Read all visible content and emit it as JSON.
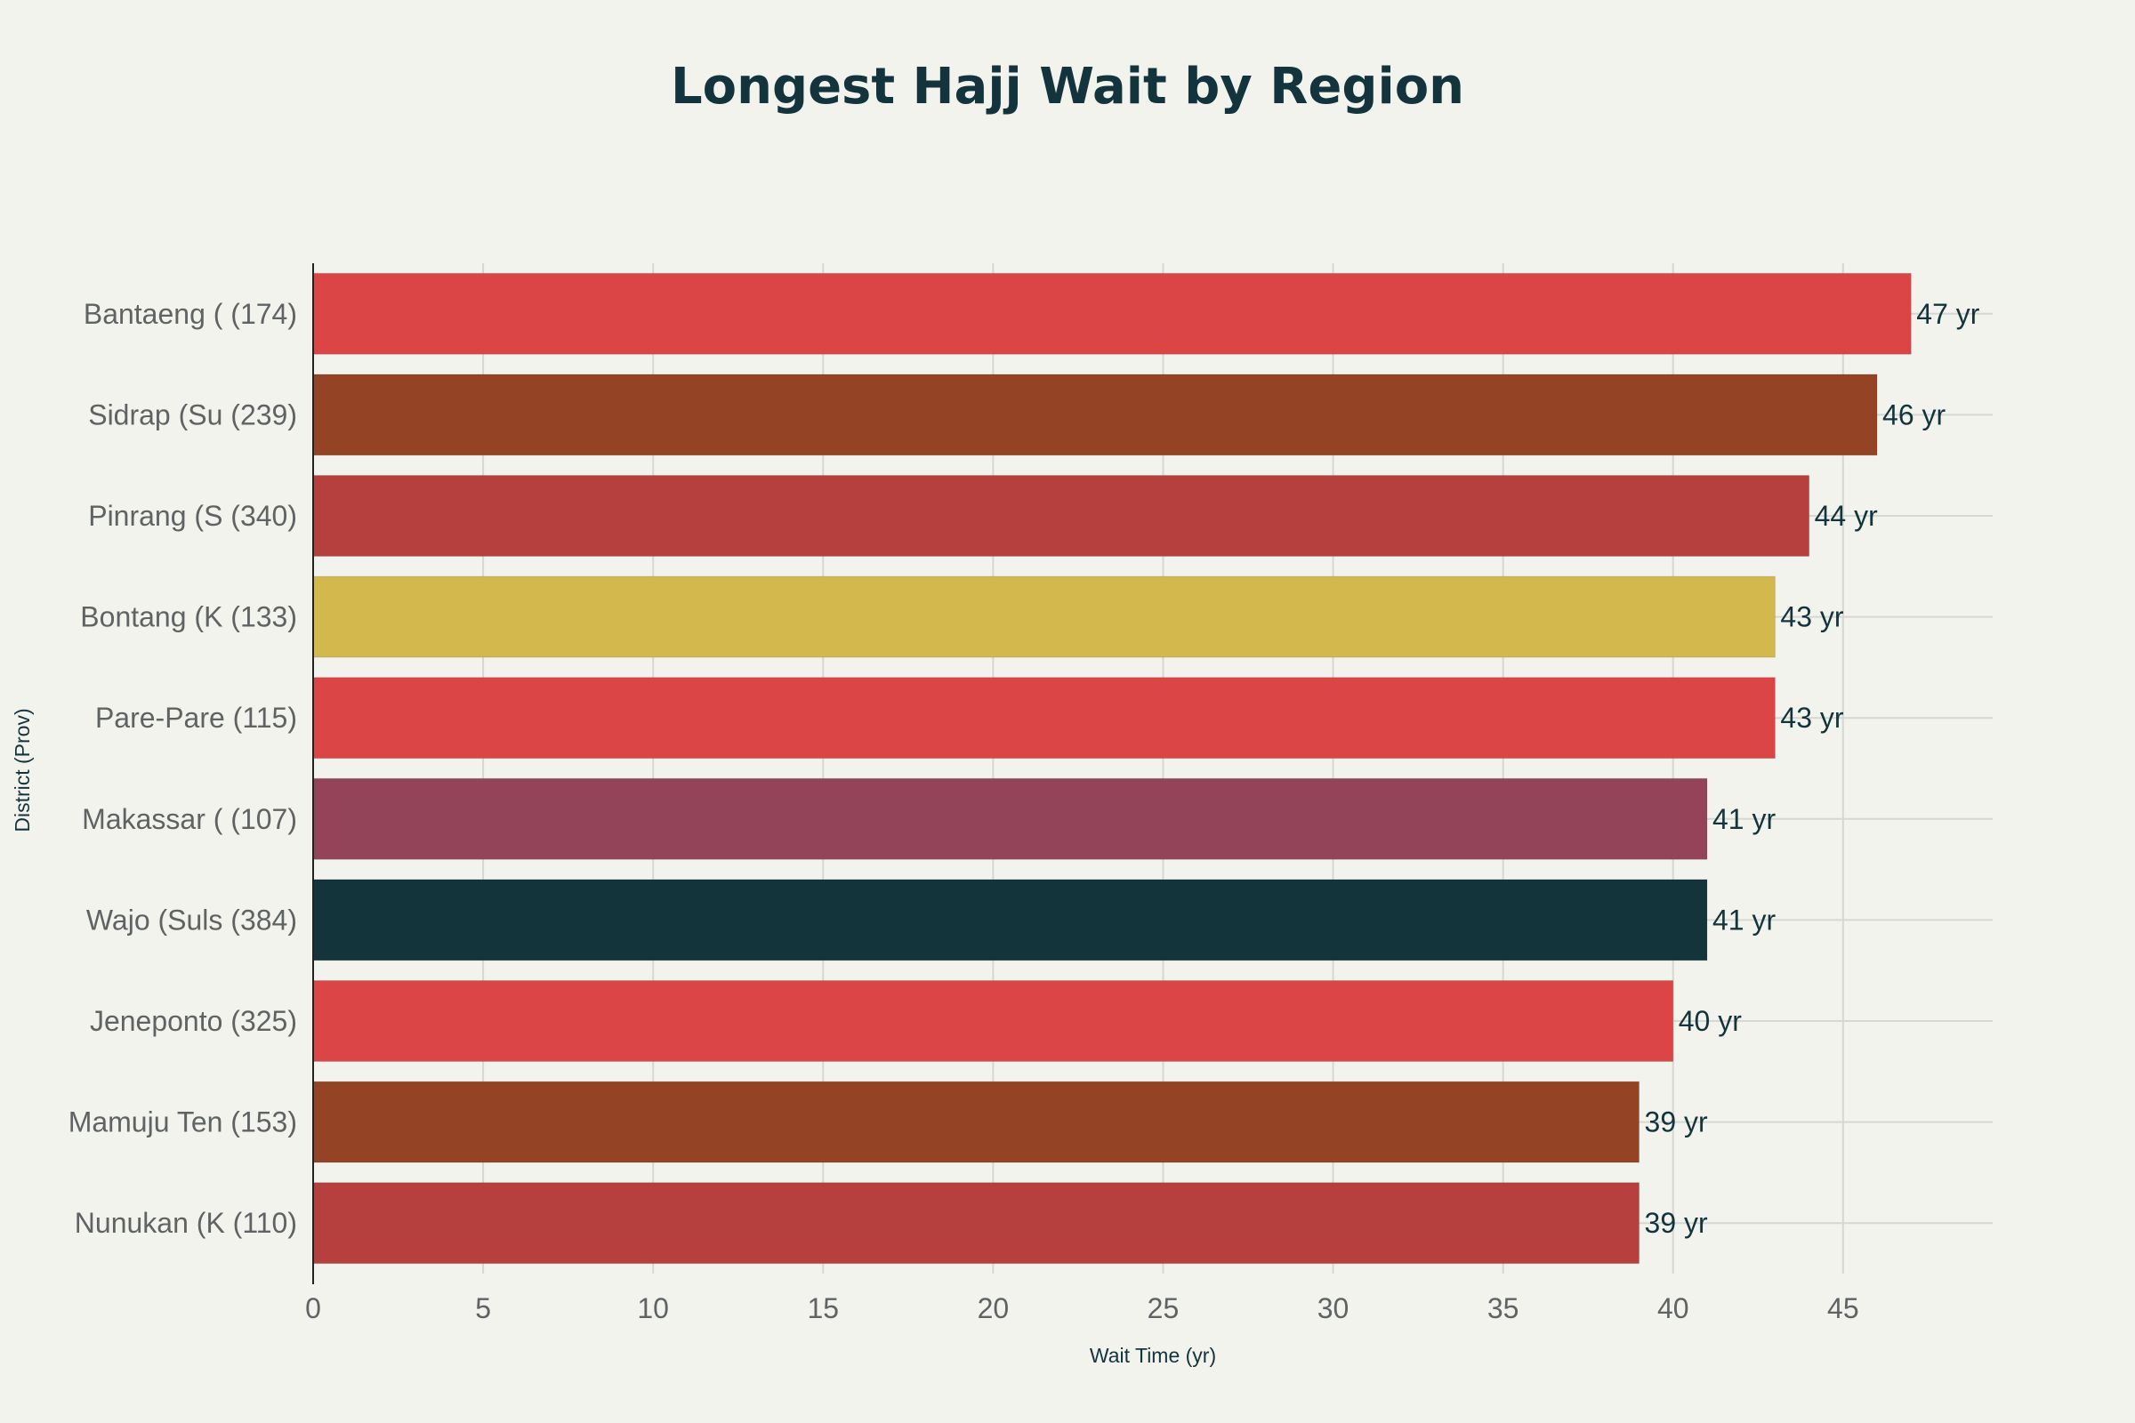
{
  "chart_data": {
    "type": "bar",
    "orientation": "horizontal",
    "title": "Longest Hajj Wait by Region",
    "xlabel": "Wait Time (yr)",
    "ylabel": "District (Prov)",
    "xlim": [
      0,
      49.4
    ],
    "xticks": [
      0,
      5,
      10,
      15,
      20,
      25,
      30,
      35,
      40,
      45
    ],
    "grid": true,
    "categories": [
      "Bantaeng ( (174)",
      "Sidrap (Su (239)",
      "Pinrang (S (340)",
      "Bontang (K (133)",
      "Pare-Pare  (115)",
      "Makassar ( (107)",
      "Wajo (Suls (384)",
      "Jeneponto  (325)",
      "Mamuju Ten (153)",
      "Nunukan (K (110)"
    ],
    "values": [
      47,
      46,
      44,
      43,
      43,
      41,
      41,
      40,
      39,
      39
    ],
    "data_labels": [
      "47 yr",
      "46 yr",
      "44 yr",
      "43 yr",
      "43 yr",
      "41 yr",
      "41 yr",
      "40 yr",
      "39 yr",
      "39 yr"
    ],
    "colors": [
      "#db4545",
      "#944325",
      "#b5403e",
      "#d3b94d",
      "#db4545",
      "#944458",
      "#13343b",
      "#db4545",
      "#944325",
      "#b5403e"
    ]
  }
}
